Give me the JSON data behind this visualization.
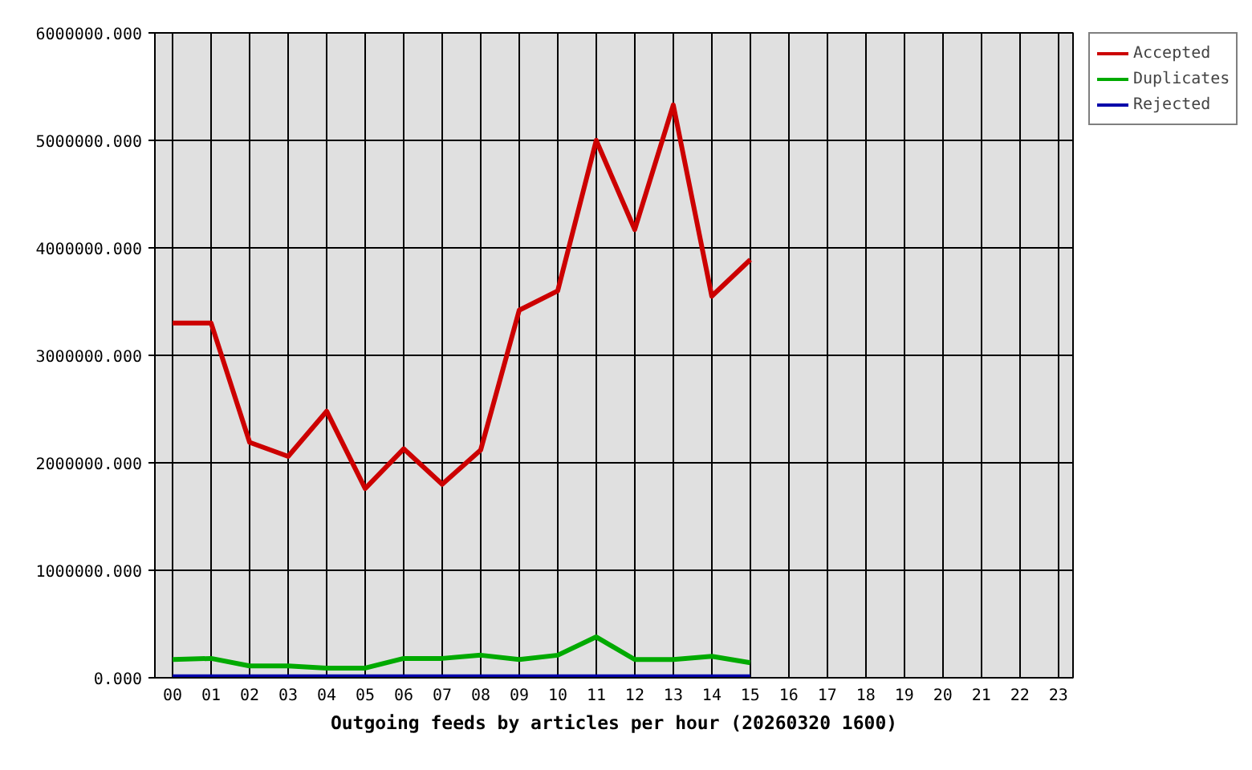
{
  "chart_data": {
    "type": "line",
    "xlabel": "Outgoing feeds by articles per hour (20260320 1600)",
    "categories": [
      "00",
      "01",
      "02",
      "03",
      "04",
      "05",
      "06",
      "07",
      "08",
      "09",
      "10",
      "11",
      "12",
      "13",
      "14",
      "15",
      "16",
      "17",
      "18",
      "19",
      "20",
      "21",
      "22",
      "23"
    ],
    "series": [
      {
        "name": "Accepted",
        "color": "#cc0000",
        "values": [
          3300000,
          3300000,
          2190000,
          2060000,
          2480000,
          1760000,
          2130000,
          1800000,
          2120000,
          3420000,
          3600000,
          5000000,
          4170000,
          5330000,
          3550000,
          3890000,
          null,
          null,
          null,
          null,
          null,
          null,
          null,
          null
        ]
      },
      {
        "name": "Duplicates",
        "color": "#00aa00",
        "values": [
          170000,
          180000,
          110000,
          110000,
          90000,
          90000,
          180000,
          180000,
          210000,
          170000,
          210000,
          380000,
          170000,
          170000,
          200000,
          140000,
          null,
          null,
          null,
          null,
          null,
          null,
          null,
          null
        ]
      },
      {
        "name": "Rejected",
        "color": "#0000aa",
        "values": [
          10000,
          10000,
          10000,
          10000,
          10000,
          10000,
          10000,
          10000,
          10000,
          10000,
          10000,
          10000,
          10000,
          10000,
          10000,
          10000,
          null,
          null,
          null,
          null,
          null,
          null,
          null,
          null
        ]
      }
    ],
    "ylim": [
      0,
      6000000
    ],
    "yticks": [
      {
        "value": 0,
        "label": "0.000"
      },
      {
        "value": 1000000,
        "label": "1000000.000"
      },
      {
        "value": 2000000,
        "label": "2000000.000"
      },
      {
        "value": 3000000,
        "label": "3000000.000"
      },
      {
        "value": 4000000,
        "label": "4000000.000"
      },
      {
        "value": 5000000,
        "label": "5000000.000"
      },
      {
        "value": 6000000,
        "label": "6000000.000"
      }
    ],
    "grid": true,
    "legend": "top right",
    "marker": "none",
    "line_style": "solid"
  }
}
